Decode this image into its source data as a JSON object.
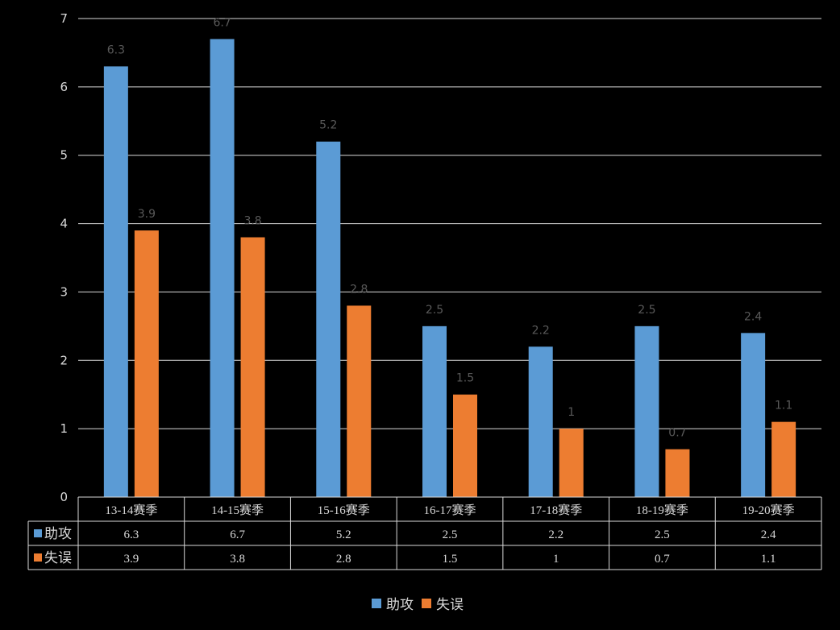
{
  "chart_data": {
    "type": "bar",
    "title": "",
    "xlabel": "",
    "ylabel": "",
    "categories": [
      "13-14赛季",
      "14-15赛季",
      "15-16赛季",
      "16-17赛季",
      "17-18赛季",
      "18-19赛季",
      "19-20赛季"
    ],
    "series": [
      {
        "name": "助攻",
        "color": "#5b9bd5",
        "values": [
          6.3,
          6.7,
          5.2,
          2.5,
          2.2,
          2.5,
          2.4
        ]
      },
      {
        "name": "失误",
        "color": "#ed7d31",
        "values": [
          3.9,
          3.8,
          2.8,
          1.5,
          1,
          0.7,
          1.1
        ]
      }
    ],
    "yticks": [
      0,
      1,
      2,
      3,
      4,
      5,
      6,
      7
    ],
    "ylim": [
      0,
      7
    ],
    "grid": true,
    "data_labels": true,
    "data_table": true,
    "legend_position": "bottom"
  }
}
